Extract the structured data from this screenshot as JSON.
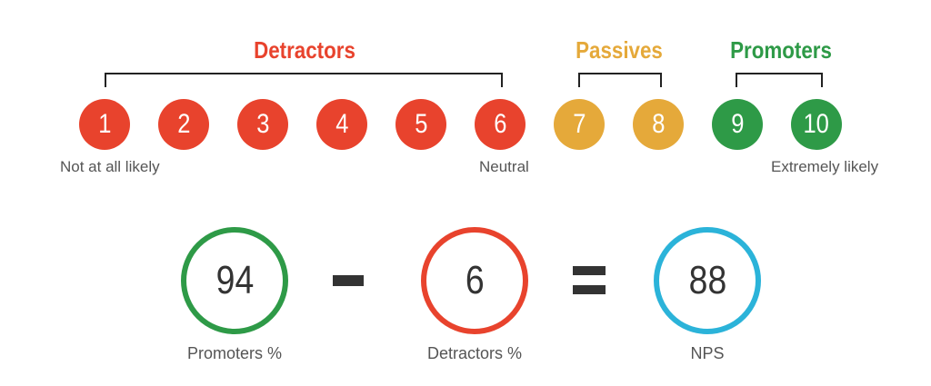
{
  "groups": {
    "detractors": {
      "label": "Detractors",
      "color": "#e8432d"
    },
    "passives": {
      "label": "Passives",
      "color": "#e5a93a"
    },
    "promoters": {
      "label": "Promoters",
      "color": "#2e9a47"
    }
  },
  "scores": [
    {
      "value": "1",
      "group": "detractors"
    },
    {
      "value": "2",
      "group": "detractors"
    },
    {
      "value": "3",
      "group": "detractors"
    },
    {
      "value": "4",
      "group": "detractors"
    },
    {
      "value": "5",
      "group": "detractors"
    },
    {
      "value": "6",
      "group": "detractors"
    },
    {
      "value": "7",
      "group": "passives"
    },
    {
      "value": "8",
      "group": "passives"
    },
    {
      "value": "9",
      "group": "promoters"
    },
    {
      "value": "10",
      "group": "promoters"
    }
  ],
  "scale_labels": {
    "low": "Not at all likely",
    "mid": "Neutral",
    "high": "Extremely likely"
  },
  "formula": {
    "promoters": {
      "value": "94",
      "caption": "Promoters %",
      "color": "#2e9a47"
    },
    "detractors": {
      "value": "6",
      "caption": "Detractors %",
      "color": "#e8432d"
    },
    "nps": {
      "value": "88",
      "caption": "NPS",
      "color": "#2bb3d9"
    }
  }
}
